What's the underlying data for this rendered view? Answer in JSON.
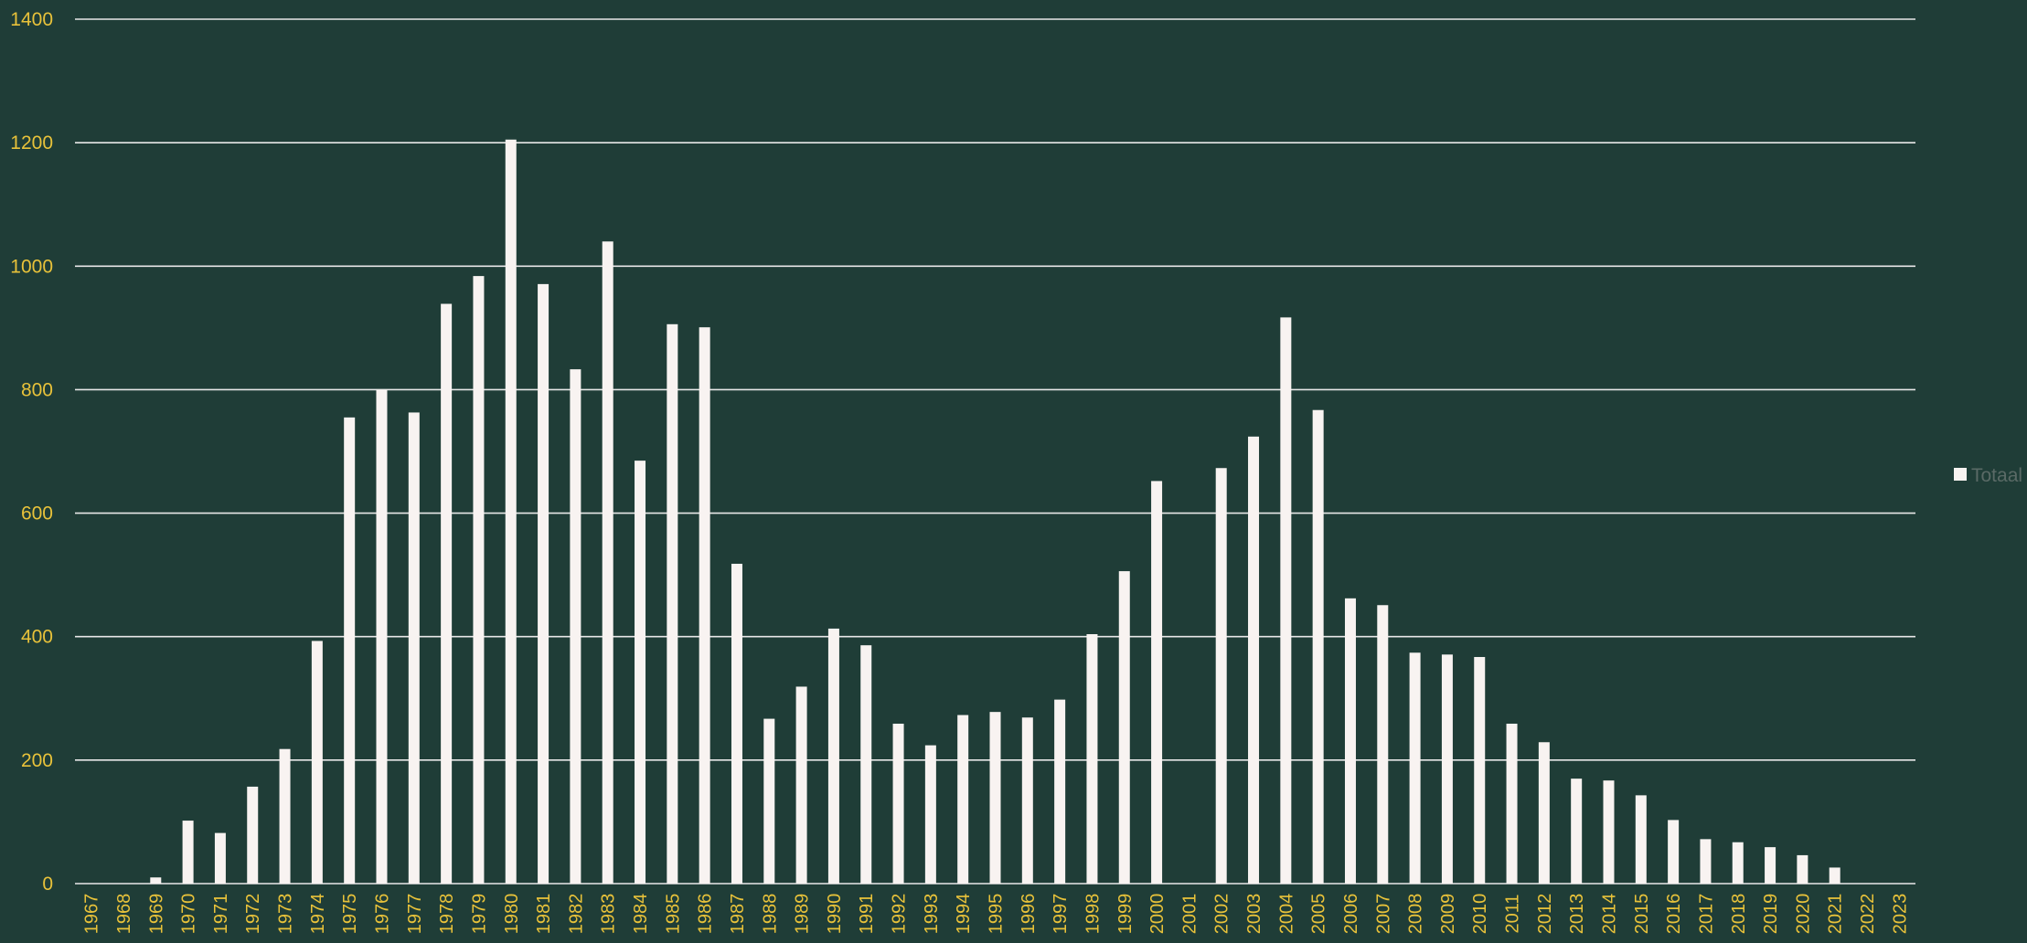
{
  "chart_data": {
    "type": "bar",
    "title": "",
    "xlabel": "",
    "ylabel": "",
    "ylim": [
      0,
      1400
    ],
    "yticks": [
      0,
      200,
      400,
      600,
      800,
      1000,
      1200,
      1400
    ],
    "grid": true,
    "legend_position": "right",
    "categories": [
      "1967",
      "1968",
      "1969",
      "1970",
      "1971",
      "1972",
      "1973",
      "1974",
      "1975",
      "1976",
      "1977",
      "1978",
      "1979",
      "1980",
      "1981",
      "1982",
      "1983",
      "1984",
      "1985",
      "1986",
      "1987",
      "1988",
      "1989",
      "1990",
      "1991",
      "1992",
      "1993",
      "1994",
      "1995",
      "1996",
      "1997",
      "1998",
      "1999",
      "2000",
      "2001",
      "2002",
      "2003",
      "2004",
      "2005",
      "2006",
      "2007",
      "2008",
      "2009",
      "2010",
      "2011",
      "2012",
      "2013",
      "2014",
      "2015",
      "2016",
      "2017",
      "2018",
      "2019",
      "2020",
      "2021",
      "2022",
      "2023"
    ],
    "series": [
      {
        "name": "Totaal",
        "color": "#f8f3f1",
        "values": [
          0,
          0,
          10,
          102,
          82,
          157,
          218,
          393,
          755,
          800,
          763,
          939,
          984,
          1205,
          971,
          833,
          1040,
          685,
          906,
          901,
          518,
          267,
          319,
          413,
          386,
          259,
          224,
          273,
          278,
          269,
          298,
          404,
          506,
          652,
          0,
          673,
          724,
          917,
          767,
          462,
          451,
          374,
          371,
          367,
          259,
          229,
          170,
          167,
          143,
          103,
          72,
          67,
          59,
          46,
          26,
          0,
          0
        ]
      }
    ]
  },
  "colors": {
    "background": "#1f3d37",
    "bar": "#f8f3f1",
    "gridline": "#e8e8e8",
    "tick_text": "#e8c23a",
    "legend_text": "#5a6a66"
  }
}
